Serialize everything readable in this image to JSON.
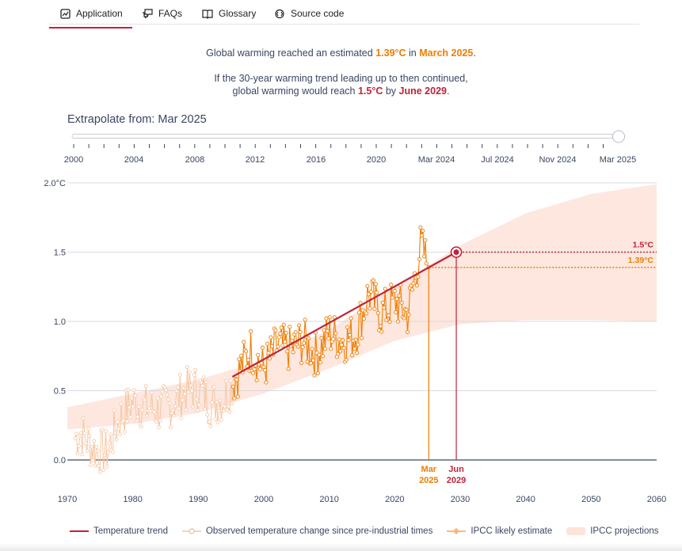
{
  "tabs": [
    {
      "label": "Application",
      "icon": "chart-icon",
      "active": true
    },
    {
      "label": "FAQs",
      "icon": "chat-icon"
    },
    {
      "label": "Glossary",
      "icon": "book-icon"
    },
    {
      "label": "Source code",
      "icon": "code-icon"
    }
  ],
  "headline": {
    "line1_pre": "Global warming reached an estimated ",
    "line1_value": "1.39°C",
    "line1_mid": " in ",
    "line1_date": "March 2025",
    "line1_post": ".",
    "line2": "If the 30-year warming trend leading up to then continued,",
    "line3_pre": "global warming would reach ",
    "line3_value": "1.5°C",
    "line3_mid": " by ",
    "line3_date": "June 2029",
    "line3_post": "."
  },
  "slider": {
    "label": "Extrapolate from: Mar 2025",
    "tick_labels": [
      "2000",
      "2004",
      "2008",
      "2012",
      "2016",
      "2020",
      "Mar 2024",
      "Jul 2024",
      "Nov 2024",
      "Mar 2025"
    ],
    "selected": "Mar 2025"
  },
  "colors": {
    "trend": "#c0233a",
    "observed": "#ef7d00",
    "observed_faded": "#f6c6a2",
    "projection_band": "#fde3d9",
    "axis": "#3a4660"
  },
  "chart_data": {
    "type": "line",
    "xlim": [
      1970,
      2060
    ],
    "ylim": [
      0,
      2.0
    ],
    "x_ticks": [
      "1970",
      "1980",
      "1990",
      "2000",
      "2010",
      "2020",
      "2030",
      "2040",
      "2050",
      "2060"
    ],
    "y_ticks": [
      "0.0",
      "0.5",
      "1.0",
      "1.5",
      "2.0°C"
    ],
    "observed_summary": [
      [
        1970,
        0.1
      ],
      [
        1972,
        0.2
      ],
      [
        1974,
        0.08
      ],
      [
        1976,
        0.05
      ],
      [
        1978,
        0.3
      ],
      [
        1980,
        0.42
      ],
      [
        1982,
        0.38
      ],
      [
        1984,
        0.36
      ],
      [
        1986,
        0.4
      ],
      [
        1988,
        0.5
      ],
      [
        1990,
        0.52
      ],
      [
        1992,
        0.4
      ],
      [
        1994,
        0.45
      ],
      [
        1996,
        0.62
      ],
      [
        1998,
        0.8
      ],
      [
        2000,
        0.66
      ],
      [
        2002,
        0.82
      ],
      [
        2004,
        0.8
      ],
      [
        2006,
        0.86
      ],
      [
        2008,
        0.76
      ],
      [
        2010,
        0.92
      ],
      [
        2012,
        0.86
      ],
      [
        2014,
        0.9
      ],
      [
        2016,
        1.2
      ],
      [
        2018,
        1.05
      ],
      [
        2020,
        1.15
      ],
      [
        2022,
        1.05
      ],
      [
        2023,
        1.3
      ],
      [
        2024,
        1.55
      ],
      [
        2025.2,
        1.39
      ]
    ],
    "trend": {
      "x": [
        1995.2,
        2029.4
      ],
      "y": [
        0.6,
        1.5
      ]
    },
    "ipcc_band": {
      "x": [
        1970,
        1980,
        1990,
        2000,
        2010,
        2020,
        2030,
        2040,
        2050,
        2060
      ],
      "lower": [
        0.22,
        0.26,
        0.34,
        0.48,
        0.66,
        0.86,
        0.98,
        1.01,
        1.01,
        1.0
      ],
      "upper": [
        0.38,
        0.48,
        0.58,
        0.72,
        0.94,
        1.25,
        1.55,
        1.78,
        1.92,
        1.99
      ]
    },
    "markers": [
      {
        "x": 2025.2,
        "y": 1.39,
        "label": "1.39°C",
        "date_label": [
          "Mar",
          "2025"
        ],
        "color": "#ef7d00"
      },
      {
        "x": 2029.4,
        "y": 1.5,
        "label": "1.5°C",
        "date_label": [
          "Jun",
          "2029"
        ],
        "color": "#c0233a"
      }
    ]
  },
  "legend": [
    {
      "label": "Temperature trend",
      "kind": "trend"
    },
    {
      "label": "Observed temperature change since pre-industrial times",
      "kind": "observed"
    },
    {
      "label": "IPCC likely estimate",
      "kind": "likely"
    },
    {
      "label": "IPCC projections",
      "kind": "band"
    }
  ]
}
